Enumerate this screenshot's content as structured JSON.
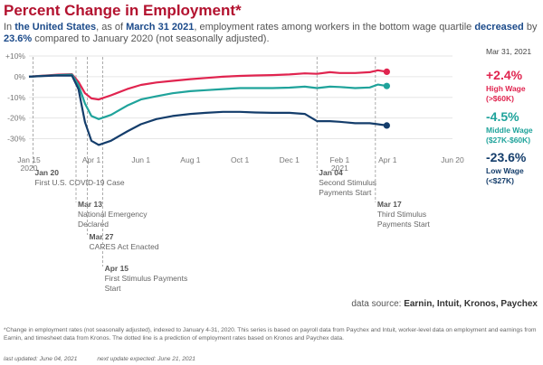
{
  "header": {
    "title": "Percent Change in Employment*",
    "sub_in": "In ",
    "sub_place": "the United States",
    "sub_mid1": ", as of ",
    "sub_date": "March 31 2021",
    "sub_mid2": ", employment rates among workers in the bottom wage quartile ",
    "sub_dir": "decreased",
    "sub_mid3": " by ",
    "sub_val": "23.6%",
    "sub_end": " compared to January 2020 (not seasonally adjusted)."
  },
  "source": {
    "label": "data source: ",
    "names": "Earnin, Intuit, Kronos, Paychex"
  },
  "footnote": "*Change in employment rates (not seasonally adjusted), indexed to January 4-31, 2020. This series is based on payroll data from Paychex and Intuit, worker-level data on employment and earnings from Earnin, and timesheet data from Kronos. The dotted line is a prediction of employment rates based on Kronos and Paychex data.",
  "updated": {
    "last": "last updated: June 04, 2021",
    "next": "next update expected: June 21, 2021"
  },
  "chart_data": {
    "type": "line",
    "xlim": [
      "2020-01-15",
      "2021-06-20"
    ],
    "ylim": [
      -35,
      10
    ],
    "y_ticks": [
      10,
      0,
      -10,
      -20,
      -30
    ],
    "y_tick_labels": [
      "+10%",
      "0%",
      "-10%",
      "-20%",
      "-30%"
    ],
    "x_ticks": [
      {
        "date": "2020-01-15",
        "label": "Jan 15",
        "label2": "2020"
      },
      {
        "date": "2020-04-01",
        "label": "Apr 1",
        "label2": ""
      },
      {
        "date": "2020-06-01",
        "label": "Jun 1",
        "label2": ""
      },
      {
        "date": "2020-08-01",
        "label": "Aug 1",
        "label2": ""
      },
      {
        "date": "2020-10-01",
        "label": "Oct 1",
        "label2": ""
      },
      {
        "date": "2020-12-01",
        "label": "Dec 1",
        "label2": ""
      },
      {
        "date": "2021-02-01",
        "label": "Feb 1",
        "label2": "2021"
      },
      {
        "date": "2021-04-01",
        "label": "Apr 1",
        "label2": ""
      },
      {
        "date": "2021-06-20",
        "label": "Jun 20",
        "label2": ""
      }
    ],
    "grid": "horizontal",
    "end_date_label": "Mar 31, 2021",
    "series": [
      {
        "name": "High Wage",
        "range": "(>$60K)",
        "end_value_label": "+2.4%",
        "color": "#e0244f",
        "x": [
          "2020-01-15",
          "2020-02-01",
          "2020-02-20",
          "2020-03-08",
          "2020-03-16",
          "2020-03-24",
          "2020-04-01",
          "2020-04-10",
          "2020-04-25",
          "2020-05-15",
          "2020-06-01",
          "2020-06-20",
          "2020-07-10",
          "2020-08-01",
          "2020-08-20",
          "2020-09-10",
          "2020-10-01",
          "2020-10-20",
          "2020-11-10",
          "2020-12-01",
          "2020-12-20",
          "2021-01-04",
          "2021-01-20",
          "2021-02-01",
          "2021-02-20",
          "2021-03-10",
          "2021-03-20",
          "2021-03-31"
        ],
        "values": [
          0,
          0.5,
          1.0,
          1.2,
          -2.5,
          -8.0,
          -10.5,
          -11.0,
          -9.0,
          -6.0,
          -4.0,
          -2.8,
          -2.0,
          -1.2,
          -0.6,
          0.0,
          0.4,
          0.6,
          0.8,
          1.1,
          1.6,
          1.4,
          2.2,
          1.8,
          1.8,
          2.2,
          3.1,
          2.4
        ],
        "projection": [
          [
            "2021-03-31",
            2.4
          ],
          [
            "2021-04-03",
            2.2
          ]
        ]
      },
      {
        "name": "Middle Wage",
        "range": "($27K-$60K)",
        "end_value_label": "-4.5%",
        "color": "#1fa39b",
        "x": [
          "2020-01-15",
          "2020-02-01",
          "2020-02-20",
          "2020-03-08",
          "2020-03-16",
          "2020-03-24",
          "2020-04-01",
          "2020-04-10",
          "2020-04-25",
          "2020-05-15",
          "2020-06-01",
          "2020-06-20",
          "2020-07-10",
          "2020-08-01",
          "2020-08-20",
          "2020-09-10",
          "2020-10-01",
          "2020-10-20",
          "2020-11-10",
          "2020-12-01",
          "2020-12-20",
          "2021-01-04",
          "2021-01-20",
          "2021-02-01",
          "2021-02-20",
          "2021-03-10",
          "2021-03-20",
          "2021-03-31"
        ],
        "values": [
          0,
          0.4,
          0.8,
          1.0,
          -4.0,
          -13.0,
          -19.0,
          -20.5,
          -18.5,
          -14.0,
          -11.0,
          -9.5,
          -8.0,
          -7.0,
          -6.5,
          -6.0,
          -5.5,
          -5.5,
          -5.5,
          -5.3,
          -4.8,
          -5.5,
          -4.8,
          -5.0,
          -5.5,
          -5.2,
          -3.8,
          -4.5
        ],
        "projection": [
          [
            "2021-03-31",
            -4.5
          ],
          [
            "2021-04-03",
            -4.0
          ]
        ]
      },
      {
        "name": "Low Wage",
        "range": "(<$27K)",
        "end_value_label": "-23.6%",
        "color": "#143d6b",
        "x": [
          "2020-01-15",
          "2020-02-01",
          "2020-02-20",
          "2020-03-08",
          "2020-03-16",
          "2020-03-24",
          "2020-04-01",
          "2020-04-10",
          "2020-04-25",
          "2020-05-15",
          "2020-06-01",
          "2020-06-20",
          "2020-07-10",
          "2020-08-01",
          "2020-08-20",
          "2020-09-10",
          "2020-10-01",
          "2020-10-20",
          "2020-11-10",
          "2020-12-01",
          "2020-12-20",
          "2021-01-04",
          "2021-01-20",
          "2021-02-01",
          "2021-02-20",
          "2021-03-10",
          "2021-03-20",
          "2021-03-31"
        ],
        "values": [
          0,
          0.3,
          0.6,
          0.5,
          -6.0,
          -22.0,
          -31.0,
          -33.0,
          -31.0,
          -26.5,
          -23.0,
          -20.5,
          -19.0,
          -18.0,
          -17.5,
          -17.0,
          -17.0,
          -17.3,
          -17.5,
          -17.5,
          -18.0,
          -21.5,
          -21.5,
          -21.8,
          -22.5,
          -22.5,
          -23.0,
          -23.6
        ],
        "projection": [
          [
            "2021-03-31",
            -23.6
          ],
          [
            "2021-04-03",
            -23.9
          ]
        ]
      }
    ],
    "annotations": [
      {
        "date": "2020-01-20",
        "title": "Jan 20",
        "text": [
          "First U.S. COVID-19 Case"
        ],
        "row": 0
      },
      {
        "date": "2020-03-13",
        "title": "Mar 13",
        "text": [
          "National Emergency",
          "Declared"
        ],
        "row": 1
      },
      {
        "date": "2020-03-27",
        "title": "Mar 27",
        "text": [
          "CARES Act Enacted"
        ],
        "row": 2
      },
      {
        "date": "2020-04-15",
        "title": "Apr 15",
        "text": [
          "First Stimulus Payments",
          "Start"
        ],
        "row": 3
      },
      {
        "date": "2021-01-04",
        "title": "Jan 04",
        "text": [
          "Second Stimulus",
          "Payments Start"
        ],
        "row": 0
      },
      {
        "date": "2021-03-17",
        "title": "Mar 17",
        "text": [
          "Third Stimulus",
          "Payments Start"
        ],
        "row": 1
      }
    ]
  }
}
